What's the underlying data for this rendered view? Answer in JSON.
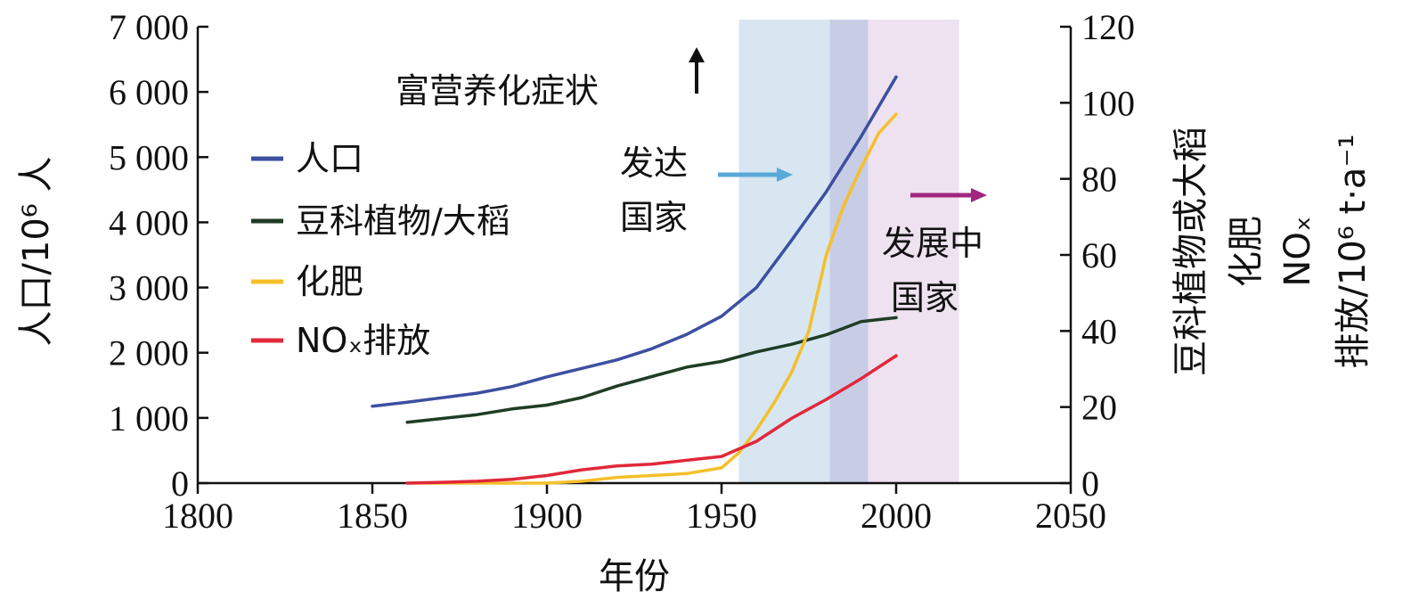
{
  "colors": {
    "population": "#3c4fa0",
    "legume": "#1f3d24",
    "fertilizer": "#f5bf2a",
    "nox": "#e0283a",
    "developed_band": "#d7e6f1",
    "overlap_band": "#c8cde6",
    "developing_band": "#eee1f0",
    "developed_arrow": "#58a9d9",
    "developing_arrow": "#a0277f"
  },
  "annotations": {
    "eutrophication": "富营养化症状",
    "developed_line1": "发达",
    "developed_line2": "国家",
    "developing_line1": "发展中",
    "developing_line2": "国家"
  },
  "chart_data": {
    "type": "line",
    "xlabel": "年份",
    "ylabel_left": "人口/10⁶ 人",
    "ylabel_right_lines": [
      "豆科植物或大稻",
      "化肥",
      "NOₓ",
      "排放/10⁶ t·a⁻¹"
    ],
    "xlim": [
      1800,
      2050
    ],
    "xticks": [
      1800,
      1850,
      1900,
      1950,
      2000,
      2050
    ],
    "ylim_left": [
      0,
      7000
    ],
    "yticks_left": [
      {
        "value": 0,
        "label": "0"
      },
      {
        "value": 1000,
        "label": "1 000"
      },
      {
        "value": 2000,
        "label": "2 000"
      },
      {
        "value": 3000,
        "label": "3 000"
      },
      {
        "value": 4000,
        "label": "4 000"
      },
      {
        "value": 5000,
        "label": "5 000"
      },
      {
        "value": 6000,
        "label": "6 000"
      },
      {
        "value": 7000,
        "label": "7 000"
      }
    ],
    "ylim_right": [
      0,
      120
    ],
    "yticks_right": [
      0,
      20,
      40,
      60,
      80,
      100,
      120
    ],
    "grid": false,
    "legend_position": "upper-left",
    "shaded_periods": [
      {
        "name": "developed",
        "start": 1955,
        "end": 1992
      },
      {
        "name": "developing",
        "start": 1981,
        "end": 2018
      }
    ],
    "series": [
      {
        "key": "population",
        "name": "人口",
        "axis": "left",
        "x": [
          1850,
          1860,
          1870,
          1880,
          1890,
          1900,
          1910,
          1920,
          1930,
          1940,
          1950,
          1960,
          1970,
          1980,
          1990,
          2000
        ],
        "y": [
          1180,
          1240,
          1310,
          1380,
          1480,
          1630,
          1760,
          1890,
          2060,
          2280,
          2560,
          3000,
          3720,
          4470,
          5320,
          6230
        ]
      },
      {
        "key": "legume",
        "name": "豆科植物/大稻",
        "axis": "right",
        "x": [
          1860,
          1870,
          1880,
          1890,
          1900,
          1910,
          1920,
          1930,
          1940,
          1950,
          1960,
          1970,
          1980,
          1990,
          2000
        ],
        "y": [
          16,
          17,
          18,
          19.5,
          20.5,
          22.5,
          25.5,
          28,
          30.5,
          32,
          34.5,
          36.5,
          39,
          42.5,
          43.5
        ]
      },
      {
        "key": "fertilizer",
        "name": "化肥",
        "axis": "right",
        "x": [
          1860,
          1900,
          1910,
          1920,
          1930,
          1940,
          1950,
          1955,
          1960,
          1965,
          1970,
          1975,
          1980,
          1985,
          1990,
          1995,
          2000
        ],
        "y": [
          0,
          0,
          0.5,
          1.5,
          2,
          2.5,
          4,
          8,
          14,
          21,
          29,
          40,
          60,
          73,
          83,
          92,
          97
        ]
      },
      {
        "key": "nox",
        "name": "NOₓ排放",
        "axis": "right",
        "x": [
          1860,
          1870,
          1880,
          1890,
          1900,
          1910,
          1920,
          1930,
          1940,
          1950,
          1960,
          1970,
          1980,
          1990,
          2000
        ],
        "y": [
          0,
          0.2,
          0.5,
          1,
          2,
          3.5,
          4.5,
          5,
          6,
          7,
          11,
          17,
          22,
          27.5,
          33.5
        ]
      }
    ]
  }
}
